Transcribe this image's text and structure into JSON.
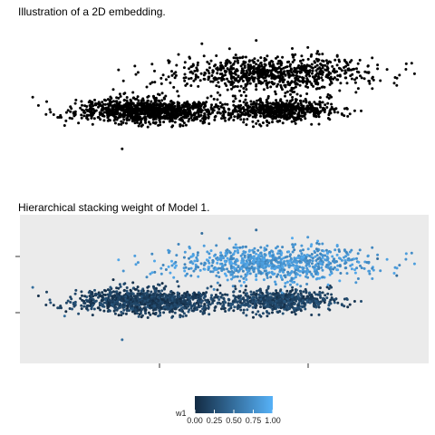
{
  "chart_data": [
    {
      "type": "scatter",
      "title": "Illustration of a 2D embedding.",
      "xlabel": "",
      "ylabel": "",
      "xlim": [
        -3.2,
        3.2
      ],
      "ylim": [
        -2.2,
        2.2
      ],
      "grid": false,
      "legend": "none",
      "point_color": "#000000",
      "clusters": [
        {
          "center": [
            -1.2,
            -0.35
          ],
          "spread": [
            0.55,
            0.18
          ],
          "count": 1100
        },
        {
          "center": [
            0.85,
            -0.35
          ],
          "spread": [
            0.45,
            0.16
          ],
          "count": 650
        },
        {
          "center": [
            0.75,
            0.75
          ],
          "spread": [
            0.75,
            0.25
          ],
          "count": 850
        }
      ],
      "outliers": [
        [
          -3.0,
          0.05
        ],
        [
          -2.5,
          -0.8
        ],
        [
          -1.6,
          -1.5
        ],
        [
          2.7,
          0.4
        ],
        [
          2.4,
          0.9
        ],
        [
          -0.35,
          1.65
        ],
        [
          0.5,
          1.75
        ]
      ]
    },
    {
      "type": "scatter",
      "title": "Hierarchical stacking weight of Model 1.",
      "xlabel": "",
      "ylabel": "",
      "xlim": [
        -3.2,
        3.2
      ],
      "ylim": [
        -2.2,
        2.2
      ],
      "grid": false,
      "panel_background": "#ebebeb",
      "color_variable": "w1",
      "color_scale": {
        "low": "#132b43",
        "high": "#56b1f7",
        "domain": [
          0,
          1
        ]
      },
      "legend": {
        "title": "w1",
        "position": "bottom",
        "ticks": [
          "0.00",
          "0.25",
          "0.50",
          "0.75",
          "1.00"
        ]
      },
      "cluster_weights": [
        0.15,
        0.18,
        0.8
      ],
      "same_points_as": "top panel"
    }
  ]
}
